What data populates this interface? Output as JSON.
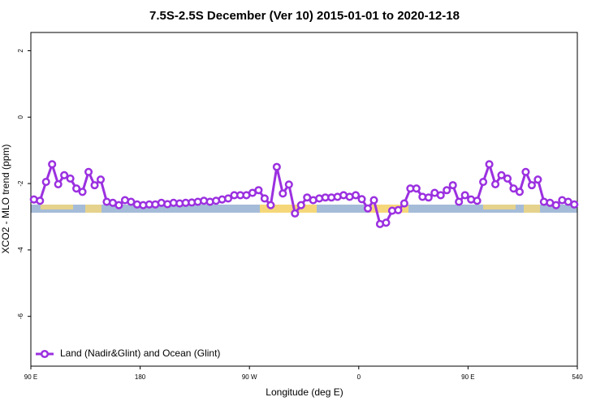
{
  "chart_data": {
    "type": "line",
    "title": "7.5S-2.5S December (Ver 10)   2015-01-01 to 2020-12-18",
    "x_label": "Longitude (deg E)",
    "y_label": "XCO2 - MLO trend (ppm)",
    "x": [
      92.5,
      97.5,
      102.5,
      107.5,
      112.5,
      117.5,
      122.5,
      127.5,
      132.5,
      137.5,
      142.5,
      147.5,
      152.5,
      157.5,
      162.5,
      167.5,
      172.5,
      177.5,
      182.5,
      187.5,
      192.5,
      197.5,
      202.5,
      207.5,
      212.5,
      217.5,
      222.5,
      227.5,
      232.5,
      237.5,
      242.5,
      247.5,
      252.5,
      257.5,
      262.5,
      267.5,
      272.5,
      277.5,
      282.5,
      287.5,
      292.5,
      297.5,
      302.5,
      307.5,
      312.5,
      317.5,
      322.5,
      327.5,
      332.5,
      337.5,
      342.5,
      347.5,
      352.5,
      357.5,
      362.5,
      367.5,
      372.5,
      377.5,
      382.5,
      387.5,
      392.5,
      397.5,
      402.5,
      407.5,
      412.5,
      417.5,
      422.5,
      427.5,
      432.5,
      437.5,
      442.5,
      447.5,
      452.5,
      457.5,
      462.5,
      467.5,
      472.5,
      477.5,
      482.5,
      487.5,
      492.5,
      497.5,
      502.5,
      507.5,
      512.5,
      517.5,
      522.5,
      527.5,
      532.5,
      537.5
    ],
    "series": [
      {
        "name": "Land (Nadir&Glint) and Ocean (Glint)",
        "color": "#9b30e0",
        "values": [
          -2.48,
          -2.52,
          -1.95,
          -1.42,
          -2.02,
          -1.75,
          -1.85,
          -2.15,
          -2.25,
          -1.65,
          -2.05,
          -1.88,
          -2.55,
          -2.58,
          -2.65,
          -2.5,
          -2.55,
          -2.63,
          -2.65,
          -2.63,
          -2.63,
          -2.58,
          -2.62,
          -2.58,
          -2.6,
          -2.58,
          -2.57,
          -2.55,
          -2.52,
          -2.55,
          -2.52,
          -2.48,
          -2.45,
          -2.35,
          -2.35,
          -2.35,
          -2.28,
          -2.2,
          -2.45,
          -2.65,
          -1.5,
          -2.3,
          -2.03,
          -2.9,
          -2.65,
          -2.42,
          -2.5,
          -2.45,
          -2.42,
          -2.42,
          -2.4,
          -2.35,
          -2.4,
          -2.35,
          -2.47,
          -2.75,
          -2.5,
          -3.22,
          -3.18,
          -2.82,
          -2.8,
          -2.6,
          -2.15,
          -2.15,
          -2.4,
          -2.42,
          -2.28,
          -2.35,
          -2.2,
          -2.05,
          -2.55,
          -2.35,
          -2.48,
          -2.52,
          -1.95,
          -1.42,
          -2.02,
          -1.75,
          -1.85,
          -2.15,
          -2.25,
          -1.65,
          -2.05,
          -1.88,
          -2.55,
          -2.58,
          -2.65,
          -2.5,
          -2.55,
          -2.63
        ]
      }
    ],
    "xlim": [
      90,
      540
    ],
    "xticks": [
      {
        "value": 90,
        "label": "90 E"
      },
      180,
      {
        "value": 270,
        "label": "90 W"
      },
      {
        "value": 360,
        "label": "0"
      },
      {
        "value": 450,
        "label": "90 E"
      },
      540
    ],
    "ylim": [
      -7.5,
      2.55
    ],
    "yticks": [
      -6,
      -4,
      -2,
      0,
      2
    ],
    "legend": "bottom-left"
  }
}
